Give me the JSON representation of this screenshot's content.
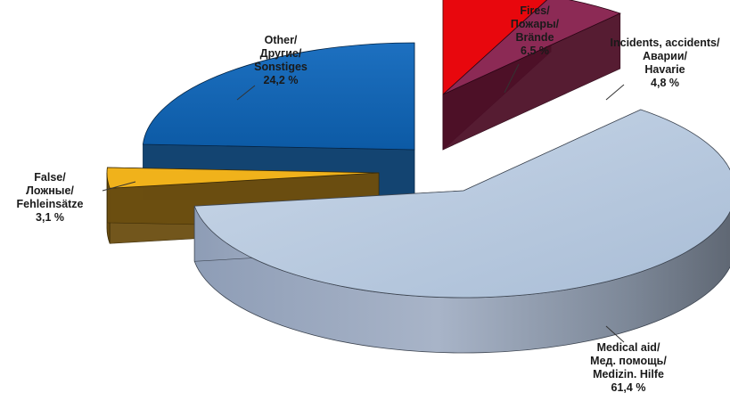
{
  "chart_data": {
    "type": "pie",
    "title": "",
    "slices": [
      {
        "id": "fires",
        "label_lines": [
          "Fires/",
          "Пожары/",
          "Brände",
          "6,5 %"
        ],
        "value": 6.5,
        "color": "#e8070d"
      },
      {
        "id": "incidents",
        "label_lines": [
          "Incidents, accidents/",
          "Аварии/",
          "Havarie",
          "4,8 %"
        ],
        "value": 4.8,
        "color": "#8c2a55"
      },
      {
        "id": "medical",
        "label_lines": [
          "Medical aid/",
          "Мед. помощь/",
          "Medizin. Hilfe",
          "61,4 %"
        ],
        "value": 61.4,
        "color": "#b6c9e0"
      },
      {
        "id": "false",
        "label_lines": [
          "False/",
          "Ложные/",
          "Fehleinsätze",
          "3,1 %"
        ],
        "value": 3.1,
        "color": "#f0b21b"
      },
      {
        "id": "other",
        "label_lines": [
          "Other/",
          "Другие/",
          "Sonstiges",
          "24,2 %"
        ],
        "value": 24.2,
        "color": "#0f64b4"
      }
    ],
    "legend": "none"
  }
}
